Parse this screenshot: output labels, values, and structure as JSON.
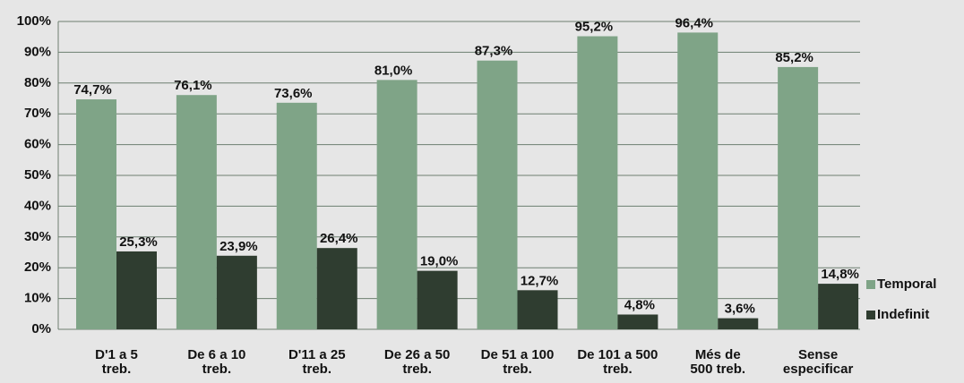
{
  "chart_data": {
    "type": "bar",
    "categories": [
      "D'1 a 5\ntreb.",
      "De 6 a 10\ntreb.",
      "D'11 a 25\ntreb.",
      "De 26 a 50\ntreb.",
      "De 51 a 100\ntreb.",
      "De 101 a 500\ntreb.",
      "Més de\n500 treb.",
      "Sense\nespecificar"
    ],
    "series": [
      {
        "name": "Temporal",
        "color": "#7fa487",
        "values": [
          74.7,
          76.1,
          73.6,
          81.0,
          87.3,
          95.2,
          96.4,
          85.2
        ],
        "value_labels": [
          "74,7%",
          "76,1%",
          "73,6%",
          "81,0%",
          "87,3%",
          "95,2%",
          "96,4%",
          "85,2%"
        ]
      },
      {
        "name": "Indefinit",
        "color": "#2f3d30",
        "values": [
          25.3,
          23.9,
          26.4,
          19.0,
          12.7,
          4.8,
          3.6,
          14.8
        ],
        "value_labels": [
          "25,3%",
          "23,9%",
          "26,4%",
          "19,0%",
          "12,7%",
          "4,8%",
          "3,6%",
          "14,8%"
        ]
      }
    ],
    "ylim": [
      0,
      100
    ],
    "yticks": [
      {
        "value": 0,
        "label": "0%"
      },
      {
        "value": 10,
        "label": "10%"
      },
      {
        "value": 20,
        "label": "20%"
      },
      {
        "value": 30,
        "label": "30%"
      },
      {
        "value": 40,
        "label": "40%"
      },
      {
        "value": 50,
        "label": "50%"
      },
      {
        "value": 60,
        "label": "60%"
      },
      {
        "value": 70,
        "label": "70%"
      },
      {
        "value": 80,
        "label": "80%"
      },
      {
        "value": 90,
        "label": "90%"
      },
      {
        "value": 100,
        "label": "100%"
      }
    ],
    "grid": true,
    "legend": "right"
  }
}
